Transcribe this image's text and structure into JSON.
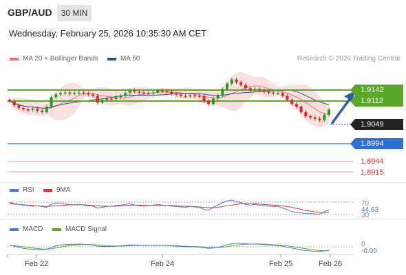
{
  "header": {
    "pair": "GBP/AUD",
    "timeframe": "30 MIN",
    "datetime": "Wednesday, February 25, 2026 10:35:30 AM CET"
  },
  "legend": {
    "ma20": "MA 20 + Bollinger Bands",
    "ma50": "MA 50",
    "credit": "Research © 2026 Trading Central"
  },
  "colors": {
    "candle_up": "#1e9e1e",
    "candle_down": "#d42a2a",
    "ma20": "#f07070",
    "ma50": "#2d4f8a",
    "bands_fill": "#fbd4d4",
    "resistance": "#5aa82a",
    "current": "#222222",
    "support_blue": "#2d6fd8",
    "support_red": "#e03030",
    "arrow": "#2d5fa8",
    "rsi": "#4a78d8",
    "rsi_ma": "#e03030",
    "macd": "#4a78d8",
    "macd_signal": "#5aa82a"
  },
  "chart_data": {
    "type": "candlestick",
    "x_ticks": [
      "Feb 22",
      "Feb 24",
      "Feb 25",
      "Feb 26"
    ],
    "y_range": [
      1.889,
      1.92
    ],
    "levels": {
      "resistance_2": "1.9142",
      "resistance_1": "1.9112",
      "current": "1.9049",
      "support_1": "1.8994",
      "support_2": "1.8944",
      "support_3": "1.8915"
    },
    "forecast_arrow": {
      "from": 1.9049,
      "to": 1.9142,
      "direction": "up"
    },
    "candle_closes": [
      1.908,
      1.9065,
      1.9055,
      1.905,
      1.9048,
      1.9052,
      1.9045,
      1.904,
      1.906,
      1.9095,
      1.9105,
      1.911,
      1.9112,
      1.9108,
      1.911,
      1.9112,
      1.911,
      1.9105,
      1.91,
      1.9075,
      1.9085,
      1.909,
      1.9088,
      1.9095,
      1.91,
      1.911,
      1.912,
      1.9115,
      1.9112,
      1.911,
      1.9108,
      1.9112,
      1.912,
      1.9118,
      1.9115,
      1.9108,
      1.9105,
      1.91,
      1.9098,
      1.9102,
      1.91,
      1.9098,
      1.908,
      1.907,
      1.909,
      1.91,
      1.9125,
      1.9145,
      1.916,
      1.915,
      1.914,
      1.9128,
      1.912,
      1.9125,
      1.912,
      1.9115,
      1.9112,
      1.911,
      1.911,
      1.91,
      1.9085,
      1.907,
      1.906,
      1.904,
      1.9025,
      1.902,
      1.9015,
      1.901,
      1.903,
      1.9049
    ],
    "rsi": {
      "label": "RSI",
      "ma_label": "9MA",
      "levels": [
        "70",
        "30"
      ],
      "value": "44.63",
      "series": [
        66,
        62,
        60,
        58,
        57,
        55,
        56,
        54,
        52,
        60,
        64,
        63,
        61,
        60,
        59,
        60,
        58,
        56,
        55,
        50,
        52,
        54,
        55,
        57,
        58,
        60,
        62,
        58,
        56,
        55,
        56,
        58,
        60,
        58,
        57,
        55,
        54,
        53,
        52,
        54,
        53,
        52,
        46,
        44,
        52,
        58,
        65,
        70,
        72,
        68,
        65,
        60,
        58,
        60,
        58,
        56,
        55,
        54,
        55,
        50,
        45,
        40,
        38,
        36,
        34,
        34,
        33,
        32,
        40,
        44.63
      ],
      "ma_series": [
        62,
        61,
        60,
        59,
        58,
        57,
        56,
        55,
        54,
        55,
        56,
        57,
        58,
        59,
        59,
        59,
        59,
        58,
        57,
        56,
        55,
        55,
        55,
        55,
        56,
        57,
        58,
        58,
        58,
        57,
        57,
        57,
        57,
        57,
        57,
        57,
        56,
        55,
        55,
        54,
        54,
        53,
        52,
        51,
        51,
        52,
        54,
        56,
        58,
        60,
        62,
        63,
        63,
        62,
        61,
        60,
        59,
        58,
        57,
        56,
        54,
        52,
        49,
        46,
        43,
        41,
        39,
        37,
        36,
        37
      ]
    },
    "macd": {
      "label": "MACD",
      "signal_label": "MACD Signal",
      "zero_label": "0",
      "value": "-0.00",
      "series": [
        0.3,
        0.1,
        -0.1,
        -0.25,
        -0.35,
        -0.4,
        -0.45,
        -0.5,
        -0.4,
        -0.1,
        0.15,
        0.3,
        0.35,
        0.4,
        0.42,
        0.45,
        0.4,
        0.35,
        0.3,
        0.1,
        0.05,
        0.05,
        0.06,
        0.1,
        0.15,
        0.22,
        0.3,
        0.3,
        0.28,
        0.25,
        0.22,
        0.22,
        0.25,
        0.24,
        0.2,
        0.15,
        0.1,
        0.05,
        0.0,
        0.02,
        0.0,
        -0.05,
        -0.15,
        -0.25,
        -0.2,
        -0.1,
        0.1,
        0.3,
        0.5,
        0.55,
        0.55,
        0.5,
        0.45,
        0.45,
        0.4,
        0.35,
        0.3,
        0.25,
        0.2,
        0.1,
        -0.05,
        -0.2,
        -0.35,
        -0.5,
        -0.6,
        -0.68,
        -0.72,
        -0.75,
        -0.65,
        -0.55
      ],
      "signal_series": [
        0.25,
        0.2,
        0.1,
        0.0,
        -0.1,
        -0.2,
        -0.28,
        -0.35,
        -0.38,
        -0.32,
        -0.2,
        -0.05,
        0.1,
        0.2,
        0.28,
        0.34,
        0.37,
        0.37,
        0.35,
        0.3,
        0.24,
        0.18,
        0.14,
        0.12,
        0.12,
        0.14,
        0.18,
        0.22,
        0.24,
        0.25,
        0.24,
        0.23,
        0.23,
        0.23,
        0.22,
        0.2,
        0.17,
        0.13,
        0.09,
        0.06,
        0.04,
        0.02,
        -0.03,
        -0.09,
        -0.13,
        -0.13,
        -0.08,
        0.02,
        0.15,
        0.27,
        0.36,
        0.42,
        0.44,
        0.45,
        0.44,
        0.42,
        0.38,
        0.34,
        0.3,
        0.24,
        0.16,
        0.06,
        -0.06,
        -0.19,
        -0.31,
        -0.42,
        -0.52,
        -0.6,
        -0.63,
        -0.62
      ]
    }
  }
}
